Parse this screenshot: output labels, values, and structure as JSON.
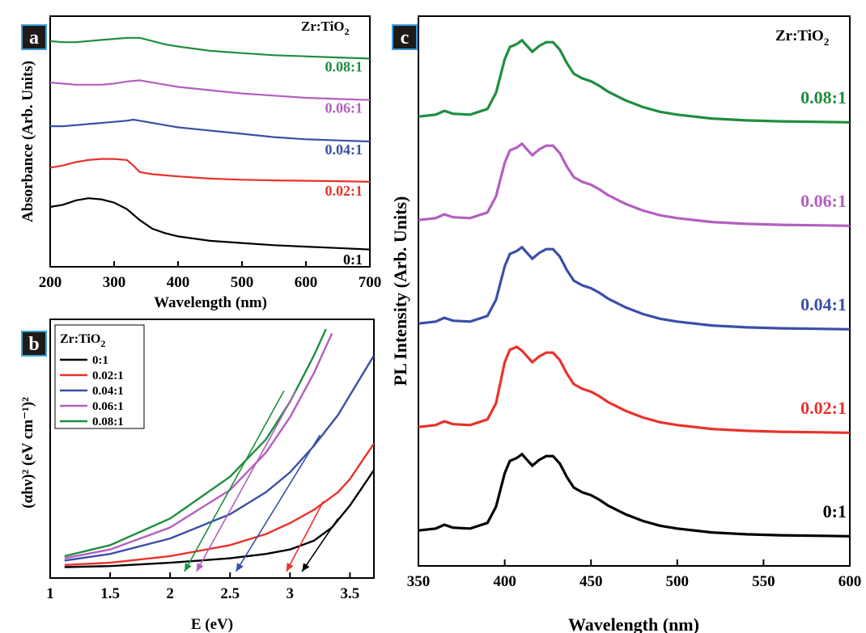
{
  "colors": {
    "0:1": "#000000",
    "0.02:1": "#e8332b",
    "0.04:1": "#3a4fa8",
    "0.06:1": "#b45fc0",
    "0.08:1": "#1e8e3e",
    "panel_label_bg": "#1f1a17",
    "panel_label_border": "#3aa0e0"
  },
  "panels": {
    "a": {
      "label": "a"
    },
    "b": {
      "label": "b"
    },
    "c": {
      "label": "c"
    }
  },
  "legend_title": {
    "prefix": "Zr:TiO",
    "sub": "2"
  },
  "chart_data": [
    {
      "id": "a",
      "type": "line",
      "xlabel": "Wavelength (nm)",
      "ylabel": "Absorbance (Arb. Units)",
      "xlim": [
        200,
        700
      ],
      "xticks": [
        200,
        300,
        400,
        500,
        600,
        700
      ],
      "yticks_shown": false,
      "legend_title": "Zr:TiO2",
      "series": [
        {
          "name": "0:1",
          "x": [
            200,
            220,
            240,
            260,
            280,
            300,
            320,
            340,
            360,
            380,
            400,
            450,
            500,
            550,
            600,
            650,
            700
          ],
          "y": [
            0.2,
            0.21,
            0.23,
            0.24,
            0.235,
            0.22,
            0.19,
            0.14,
            0.1,
            0.08,
            0.065,
            0.045,
            0.035,
            0.025,
            0.018,
            0.012,
            0.005
          ]
        },
        {
          "name": "0.02:1",
          "x": [
            200,
            220,
            240,
            260,
            280,
            300,
            320,
            330,
            340,
            360,
            380,
            400,
            450,
            500,
            550,
            600,
            650,
            700
          ],
          "y": [
            0.38,
            0.39,
            0.405,
            0.415,
            0.42,
            0.42,
            0.415,
            0.39,
            0.36,
            0.35,
            0.345,
            0.34,
            0.33,
            0.325,
            0.322,
            0.32,
            0.318,
            0.315
          ]
        },
        {
          "name": "0.04:1",
          "x": [
            200,
            220,
            240,
            260,
            280,
            300,
            320,
            330,
            340,
            360,
            380,
            400,
            450,
            500,
            550,
            600,
            650,
            700
          ],
          "y": [
            0.57,
            0.57,
            0.575,
            0.58,
            0.585,
            0.59,
            0.595,
            0.6,
            0.595,
            0.585,
            0.575,
            0.565,
            0.55,
            0.535,
            0.52,
            0.51,
            0.505,
            0.5
          ]
        },
        {
          "name": "0.06:1",
          "x": [
            200,
            220,
            240,
            260,
            280,
            300,
            320,
            340,
            360,
            380,
            400,
            450,
            500,
            550,
            600,
            650,
            700
          ],
          "y": [
            0.77,
            0.765,
            0.76,
            0.76,
            0.76,
            0.765,
            0.775,
            0.78,
            0.77,
            0.76,
            0.75,
            0.735,
            0.72,
            0.71,
            0.7,
            0.695,
            0.69
          ]
        },
        {
          "name": "0.08:1",
          "x": [
            200,
            220,
            240,
            260,
            280,
            300,
            320,
            340,
            360,
            380,
            400,
            450,
            500,
            550,
            600,
            650,
            700
          ],
          "y": [
            0.96,
            0.955,
            0.955,
            0.96,
            0.965,
            0.97,
            0.975,
            0.975,
            0.96,
            0.945,
            0.935,
            0.915,
            0.905,
            0.895,
            0.89,
            0.885,
            0.88
          ]
        }
      ]
    },
    {
      "id": "b",
      "type": "line",
      "xlabel": "E (eV)",
      "ylabel": "(αhν)² (eV cm⁻¹)²",
      "xlim": [
        1,
        3.7
      ],
      "xticks": [
        1,
        1.5,
        2,
        2.5,
        3,
        3.5
      ],
      "yticks_shown": false,
      "legend_title": "Zr:TiO2",
      "legend_placement": "top-left",
      "series": [
        {
          "name": "0:1",
          "x": [
            1.12,
            1.5,
            2.0,
            2.5,
            2.8,
            3.0,
            3.2,
            3.35,
            3.5,
            3.6,
            3.7
          ],
          "y": [
            0.02,
            0.025,
            0.04,
            0.06,
            0.08,
            0.1,
            0.14,
            0.2,
            0.3,
            0.38,
            0.46
          ]
        },
        {
          "name": "0.02:1",
          "x": [
            1.12,
            1.5,
            2.0,
            2.5,
            2.8,
            3.0,
            3.2,
            3.4,
            3.5,
            3.6,
            3.7
          ],
          "y": [
            0.03,
            0.04,
            0.07,
            0.12,
            0.17,
            0.22,
            0.28,
            0.36,
            0.42,
            0.5,
            0.58
          ]
        },
        {
          "name": "0.04:1",
          "x": [
            1.12,
            1.5,
            2.0,
            2.5,
            2.8,
            3.0,
            3.2,
            3.4,
            3.5,
            3.6,
            3.7
          ],
          "y": [
            0.05,
            0.08,
            0.15,
            0.26,
            0.36,
            0.45,
            0.57,
            0.71,
            0.8,
            0.89,
            0.98
          ]
        },
        {
          "name": "0.06:1",
          "x": [
            1.12,
            1.5,
            2.0,
            2.5,
            2.8,
            3.0,
            3.2,
            3.35
          ],
          "y": [
            0.06,
            0.1,
            0.2,
            0.37,
            0.54,
            0.7,
            0.9,
            1.08
          ]
        },
        {
          "name": "0.08:1",
          "x": [
            1.12,
            1.5,
            2.0,
            2.5,
            2.8,
            3.0,
            3.2,
            3.3
          ],
          "y": [
            0.07,
            0.12,
            0.24,
            0.43,
            0.6,
            0.77,
            0.98,
            1.1
          ]
        }
      ],
      "tangent_arrows": [
        {
          "name": "0:1",
          "from": [
            3.4,
            0.24
          ],
          "to": [
            3.1,
            0.0
          ]
        },
        {
          "name": "0.02:1",
          "from": [
            3.28,
            0.32
          ],
          "to": [
            2.97,
            0.0
          ]
        },
        {
          "name": "0.04:1",
          "from": [
            3.25,
            0.62
          ],
          "to": [
            2.55,
            0.0
          ]
        },
        {
          "name": "0.06:1",
          "from": [
            3.05,
            0.82
          ],
          "to": [
            2.22,
            0.0
          ]
        },
        {
          "name": "0.08:1",
          "from": [
            2.95,
            0.82
          ],
          "to": [
            2.12,
            0.0
          ]
        }
      ],
      "ylim": [
        0,
        1.1
      ]
    },
    {
      "id": "c",
      "type": "line",
      "xlabel": "Wavelength (nm)",
      "ylabel": "PL Intensity (Arb. Units)",
      "xlim": [
        350,
        600
      ],
      "xticks": [
        350,
        400,
        450,
        500,
        550,
        600
      ],
      "yticks_shown": false,
      "legend_title": "Zr:TiO2",
      "series": [
        {
          "name": "0:1",
          "offset": 0
        },
        {
          "name": "0.02:1",
          "offset": 1
        },
        {
          "name": "0.04:1",
          "offset": 2
        },
        {
          "name": "0.06:1",
          "offset": 3
        },
        {
          "name": "0.08:1",
          "offset": 4
        }
      ],
      "profile_x": [
        350,
        360,
        365,
        370,
        380,
        390,
        395,
        400,
        403,
        407,
        410,
        413,
        416,
        420,
        424,
        428,
        432,
        436,
        440,
        445,
        450,
        455,
        460,
        470,
        480,
        490,
        500,
        520,
        540,
        560,
        580,
        600
      ],
      "profile_y": [
        0.1,
        0.12,
        0.16,
        0.13,
        0.12,
        0.18,
        0.35,
        0.7,
        0.83,
        0.86,
        0.9,
        0.84,
        0.78,
        0.84,
        0.88,
        0.88,
        0.8,
        0.66,
        0.55,
        0.5,
        0.47,
        0.42,
        0.36,
        0.27,
        0.2,
        0.15,
        0.12,
        0.08,
        0.06,
        0.05,
        0.045,
        0.04
      ]
    }
  ]
}
